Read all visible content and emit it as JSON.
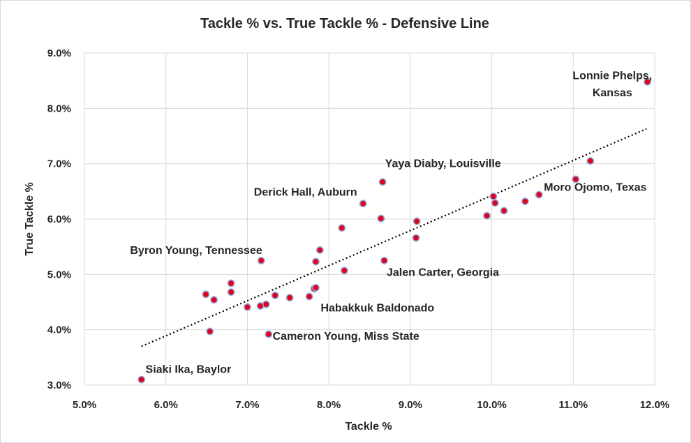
{
  "chart_data": {
    "type": "scatter",
    "title": "Tackle % vs. True Tackle % - Defensive Line",
    "xlabel": "Tackle %",
    "ylabel": "True Tackle %",
    "xlim": [
      0.05,
      0.12
    ],
    "ylim": [
      0.03,
      0.09
    ],
    "x_ticks": [
      0.05,
      0.06,
      0.07,
      0.08,
      0.09,
      0.1,
      0.11,
      0.12
    ],
    "y_ticks": [
      0.03,
      0.04,
      0.05,
      0.06,
      0.07,
      0.08,
      0.09
    ],
    "x_tick_labels": [
      "5.0%",
      "6.0%",
      "7.0%",
      "8.0%",
      "9.0%",
      "10.0%",
      "11.0%",
      "12.0%"
    ],
    "y_tick_labels": [
      "3.0%",
      "4.0%",
      "5.0%",
      "6.0%",
      "7.0%",
      "8.0%",
      "9.0%"
    ],
    "grid": true,
    "legend": "none",
    "colors": {
      "marker_fill": "#e3001b",
      "marker_edge": "#8ea9db",
      "trendline": "#000000",
      "grid": "#d9d9d9"
    },
    "trendline": {
      "type": "linear",
      "x": [
        0.057,
        0.119
      ],
      "y": [
        0.037,
        0.0763
      ],
      "style": "dotted"
    },
    "points": [
      {
        "x": 0.057,
        "y": 0.031
      },
      {
        "x": 0.0649,
        "y": 0.0464
      },
      {
        "x": 0.0654,
        "y": 0.0397
      },
      {
        "x": 0.0659,
        "y": 0.0454
      },
      {
        "x": 0.068,
        "y": 0.0484
      },
      {
        "x": 0.068,
        "y": 0.0468
      },
      {
        "x": 0.07,
        "y": 0.0441
      },
      {
        "x": 0.0716,
        "y": 0.0443
      },
      {
        "x": 0.0717,
        "y": 0.0525
      },
      {
        "x": 0.0723,
        "y": 0.0446
      },
      {
        "x": 0.0726,
        "y": 0.0392
      },
      {
        "x": 0.0734,
        "y": 0.0462
      },
      {
        "x": 0.0752,
        "y": 0.0458
      },
      {
        "x": 0.0776,
        "y": 0.046
      },
      {
        "x": 0.0782,
        "y": 0.0474
      },
      {
        "x": 0.0784,
        "y": 0.0476
      },
      {
        "x": 0.0784,
        "y": 0.0523
      },
      {
        "x": 0.0789,
        "y": 0.0544
      },
      {
        "x": 0.0816,
        "y": 0.0584
      },
      {
        "x": 0.0819,
        "y": 0.0507
      },
      {
        "x": 0.0842,
        "y": 0.0628
      },
      {
        "x": 0.0864,
        "y": 0.0601
      },
      {
        "x": 0.0866,
        "y": 0.0667
      },
      {
        "x": 0.0868,
        "y": 0.0525
      },
      {
        "x": 0.0907,
        "y": 0.0566
      },
      {
        "x": 0.0908,
        "y": 0.0596
      },
      {
        "x": 0.0994,
        "y": 0.0606
      },
      {
        "x": 0.1002,
        "y": 0.0641
      },
      {
        "x": 0.1004,
        "y": 0.0629
      },
      {
        "x": 0.1015,
        "y": 0.0615
      },
      {
        "x": 0.1041,
        "y": 0.0632
      },
      {
        "x": 0.1058,
        "y": 0.0644
      },
      {
        "x": 0.1103,
        "y": 0.0672
      },
      {
        "x": 0.1121,
        "y": 0.0705
      },
      {
        "x": 0.1191,
        "y": 0.0848
      }
    ],
    "annotations": [
      {
        "text": "Siaki Ika, Baylor",
        "x": 0.0575,
        "y": 0.0322,
        "anchor": "start"
      },
      {
        "text": "Byron Young, Tennessee",
        "x": 0.0556,
        "y": 0.0537,
        "anchor": "start"
      },
      {
        "text": "Derick Hall, Auburn",
        "x": 0.0708,
        "y": 0.0642,
        "anchor": "start"
      },
      {
        "text": "Yaya Diaby, Louisville",
        "x": 0.0869,
        "y": 0.0694,
        "anchor": "start"
      },
      {
        "text": "Jalen Carter, Georgia",
        "x": 0.0871,
        "y": 0.0497,
        "anchor": "start"
      },
      {
        "text": "Habakkuk Baldonado",
        "x": 0.079,
        "y": 0.0433,
        "anchor": "start"
      },
      {
        "text": "Cameron Young, Miss State",
        "x": 0.0731,
        "y": 0.0382,
        "anchor": "start"
      },
      {
        "text": "Moro Ojomo, Texas",
        "x": 0.1064,
        "y": 0.0651,
        "anchor": "start"
      },
      {
        "text": "Lonnie Phelps,",
        "x": 0.1148,
        "y": 0.0853,
        "anchor": "middle"
      },
      {
        "text": "Kansas",
        "x": 0.1148,
        "y": 0.0822,
        "anchor": "middle"
      }
    ]
  }
}
